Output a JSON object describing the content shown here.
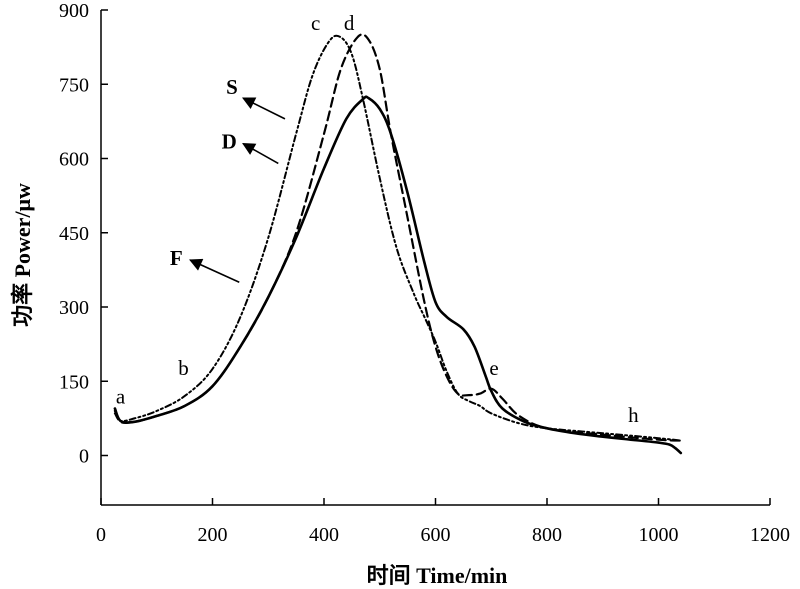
{
  "chart_data": {
    "type": "line",
    "title": "",
    "xlabel": "时间 Time/min",
    "ylabel": "功率 Power/μw",
    "xlim": [
      0,
      1200
    ],
    "ylim": [
      -100,
      900
    ],
    "x_ticks": [
      0,
      200,
      400,
      600,
      800,
      1000,
      1200
    ],
    "y_ticks": [
      0,
      150,
      300,
      450,
      600,
      750,
      900
    ],
    "grid": false,
    "legend": "none",
    "series": [
      {
        "name": "S",
        "style": "solid",
        "x": [
          25,
          35,
          60,
          100,
          150,
          200,
          250,
          300,
          350,
          400,
          440,
          470,
          480,
          500,
          520,
          550,
          580,
          600,
          620,
          650,
          670,
          690,
          700,
          720,
          760,
          800,
          850,
          900,
          950,
          1000,
          1020,
          1030,
          1040
        ],
        "y": [
          95,
          70,
          68,
          80,
          100,
          140,
          220,
          320,
          440,
          580,
          680,
          720,
          722,
          700,
          650,
          530,
          390,
          310,
          280,
          255,
          220,
          160,
          130,
          95,
          68,
          55,
          45,
          38,
          32,
          26,
          22,
          15,
          5
        ]
      },
      {
        "name": "D",
        "style": "dashed",
        "x": [
          25,
          35,
          60,
          100,
          150,
          200,
          250,
          300,
          350,
          400,
          430,
          460,
          480,
          500,
          520,
          550,
          580,
          600,
          620,
          640,
          660,
          680,
          700,
          720,
          750,
          800,
          900,
          1000,
          1040
        ],
        "y": [
          90,
          68,
          68,
          80,
          100,
          140,
          220,
          320,
          450,
          650,
          780,
          845,
          840,
          780,
          650,
          480,
          310,
          220,
          160,
          125,
          122,
          125,
          135,
          115,
          80,
          55,
          42,
          32,
          30
        ]
      },
      {
        "name": "F",
        "style": "dashdot",
        "x": [
          25,
          35,
          60,
          100,
          150,
          200,
          250,
          300,
          350,
          380,
          410,
          430,
          450,
          470,
          500,
          530,
          560,
          580,
          600,
          620,
          640,
          660,
          680,
          700,
          750,
          800,
          900,
          1000,
          1040
        ],
        "y": [
          85,
          70,
          75,
          90,
          120,
          175,
          280,
          440,
          650,
          770,
          838,
          845,
          810,
          720,
          560,
          420,
          330,
          280,
          230,
          170,
          125,
          110,
          100,
          85,
          65,
          55,
          45,
          35,
          30
        ]
      }
    ],
    "annotations": [
      {
        "text": "a",
        "x": 35,
        "y": 105
      },
      {
        "text": "b",
        "x": 148,
        "y": 163
      },
      {
        "text": "c",
        "x": 385,
        "y": 860
      },
      {
        "text": "d",
        "x": 445,
        "y": 860
      },
      {
        "text": "e",
        "x": 705,
        "y": 163
      },
      {
        "text": "h",
        "x": 955,
        "y": 68
      },
      {
        "text": "S",
        "x": 235,
        "y": 730
      },
      {
        "text": "D",
        "x": 230,
        "y": 620
      },
      {
        "text": "F",
        "x": 135,
        "y": 385
      }
    ],
    "arrows": [
      {
        "from": [
          330,
          680
        ],
        "to": [
          255,
          722
        ]
      },
      {
        "from": [
          318,
          590
        ],
        "to": [
          255,
          630
        ]
      },
      {
        "from": [
          248,
          350
        ],
        "to": [
          160,
          395
        ]
      }
    ],
    "colors": {
      "line": "#000000",
      "axis": "#000000"
    }
  }
}
